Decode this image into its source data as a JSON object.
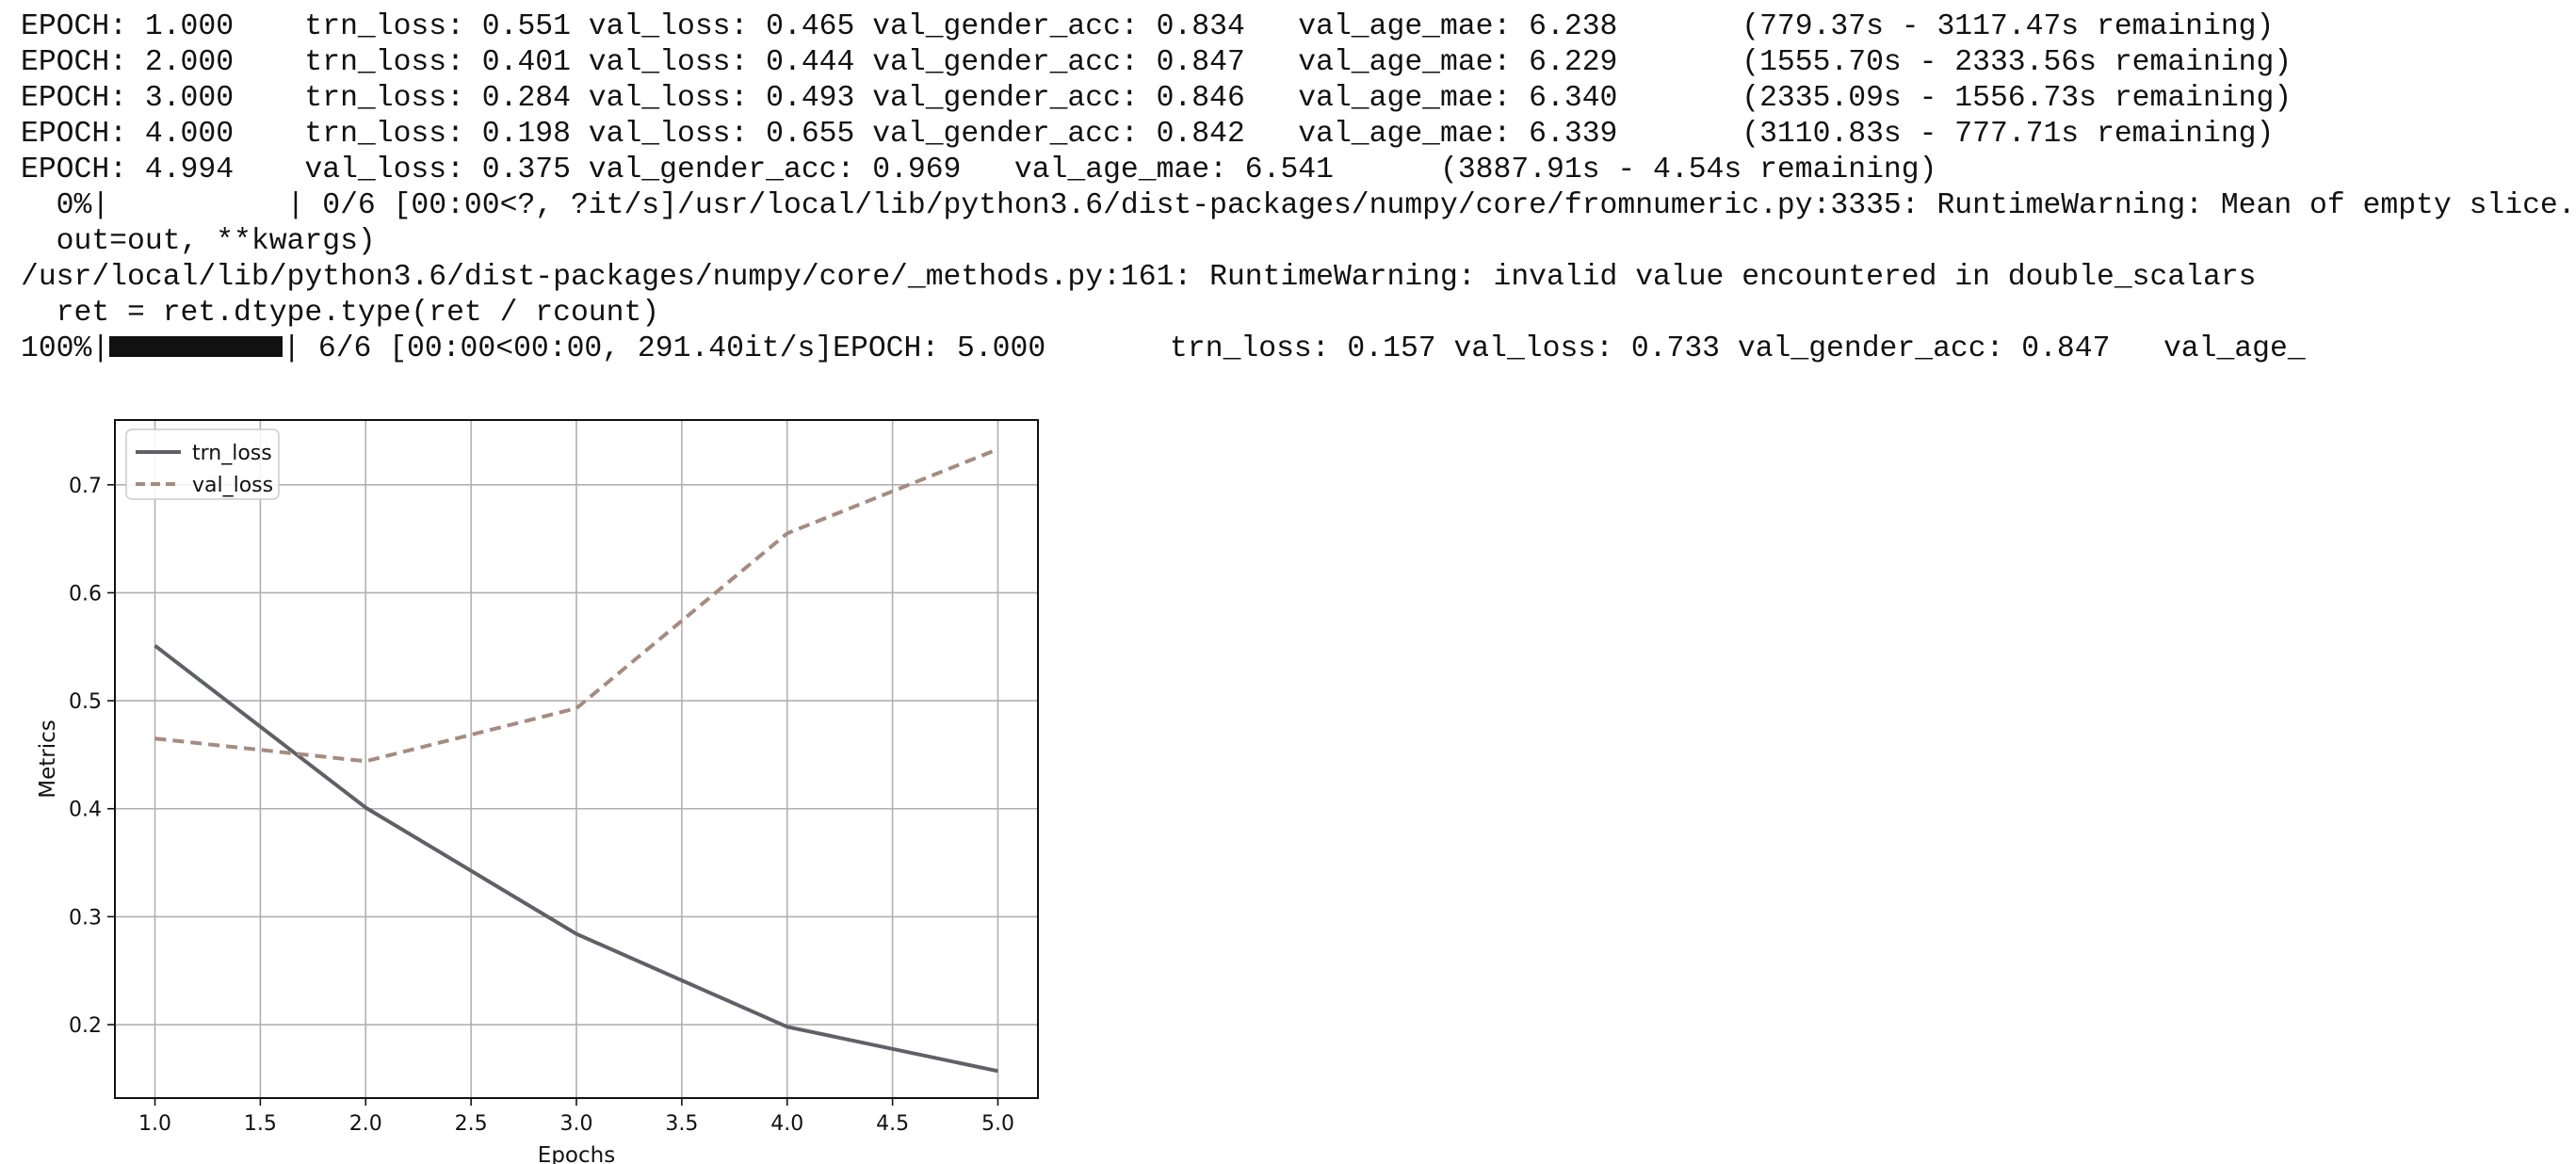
{
  "console": {
    "lines": [
      "EPOCH: 1.000    trn_loss: 0.551 val_loss: 0.465 val_gender_acc: 0.834   val_age_mae: 6.238       (779.37s - 3117.47s remaining)",
      "EPOCH: 2.000    trn_loss: 0.401 val_loss: 0.444 val_gender_acc: 0.847   val_age_mae: 6.229       (1555.70s - 2333.56s remaining)",
      "EPOCH: 3.000    trn_loss: 0.284 val_loss: 0.493 val_gender_acc: 0.846   val_age_mae: 6.340       (2335.09s - 1556.73s remaining)",
      "EPOCH: 4.000    trn_loss: 0.198 val_loss: 0.655 val_gender_acc: 0.842   val_age_mae: 6.339       (3110.83s - 777.71s remaining)",
      "EPOCH: 4.994    val_loss: 0.375 val_gender_acc: 0.969   val_age_mae: 6.541      (3887.91s - 4.54s remaining)",
      "  0%|          | 0/6 [00:00<?, ?it/s]/usr/local/lib/python3.6/dist-packages/numpy/core/fromnumeric.py:3335: RuntimeWarning: Mean of empty slice.",
      "  out=out, **kwargs)",
      "/usr/local/lib/python3.6/dist-packages/numpy/core/_methods.py:161: RuntimeWarning: invalid value encountered in double_scalars",
      "  ret = ret.dtype.type(ret / rcount)"
    ],
    "last_line_prefix": "100%|",
    "last_line_progress": 1.0,
    "last_line_suffix": "| 6/6 [00:00<00:00, 291.40it/s]EPOCH: 5.000       trn_loss: 0.157 val_loss: 0.733 val_gender_acc: 0.847   val_age_"
  },
  "chart_data": {
    "type": "line",
    "title": "",
    "xlabel": "Epochs",
    "ylabel": "Metrics",
    "xlim": [
      0.81,
      5.19
    ],
    "ylim": [
      0.132,
      0.76
    ],
    "xticks": [
      1.0,
      1.5,
      2.0,
      2.5,
      3.0,
      3.5,
      4.0,
      4.5,
      5.0
    ],
    "xtick_labels": [
      "1.0",
      "1.5",
      "2.0",
      "2.5",
      "3.0",
      "3.5",
      "4.0",
      "4.5",
      "5.0"
    ],
    "yticks": [
      0.2,
      0.3,
      0.4,
      0.5,
      0.6,
      0.7
    ],
    "ytick_labels": [
      "0.2",
      "0.3",
      "0.4",
      "0.5",
      "0.6",
      "0.7"
    ],
    "grid": true,
    "legend_position": "top-left",
    "series": [
      {
        "name": "trn_loss",
        "style": "solid",
        "color": "#5f6166",
        "x": [
          1,
          2,
          3,
          4,
          5
        ],
        "y": [
          0.551,
          0.401,
          0.284,
          0.198,
          0.157
        ]
      },
      {
        "name": "val_loss",
        "style": "dashed",
        "color": "#a68b80",
        "x": [
          1,
          2,
          3,
          4,
          5
        ],
        "y": [
          0.465,
          0.444,
          0.493,
          0.655,
          0.733
        ]
      }
    ]
  }
}
